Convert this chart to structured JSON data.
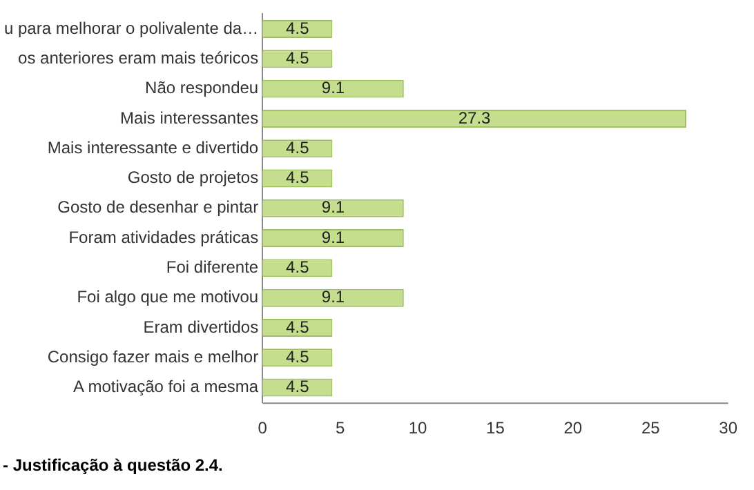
{
  "chart_data": {
    "type": "bar",
    "orientation": "horizontal",
    "categories": [
      "u para melhorar o polivalente da…",
      "os anteriores eram mais teóricos",
      "Não respondeu",
      "Mais interessantes",
      "Mais interessante e divertido",
      "Gosto de projetos",
      "Gosto de desenhar e pintar",
      "Foram atividades práticas",
      "Foi diferente",
      "Foi algo que me motivou",
      "Eram divertidos",
      "Consigo fazer mais e melhor",
      "A motivação foi a mesma"
    ],
    "values": [
      4.5,
      4.5,
      9.1,
      27.3,
      4.5,
      4.5,
      9.1,
      9.1,
      4.5,
      9.1,
      4.5,
      4.5,
      4.5
    ],
    "color": "#c5de8e",
    "xlim": [
      0,
      30
    ],
    "xticks": [
      0,
      5,
      10,
      15,
      20,
      25,
      30
    ],
    "grid": false,
    "legend": false,
    "data_labels": true,
    "annotations": [
      "- Justificação à questão 2.4."
    ]
  }
}
